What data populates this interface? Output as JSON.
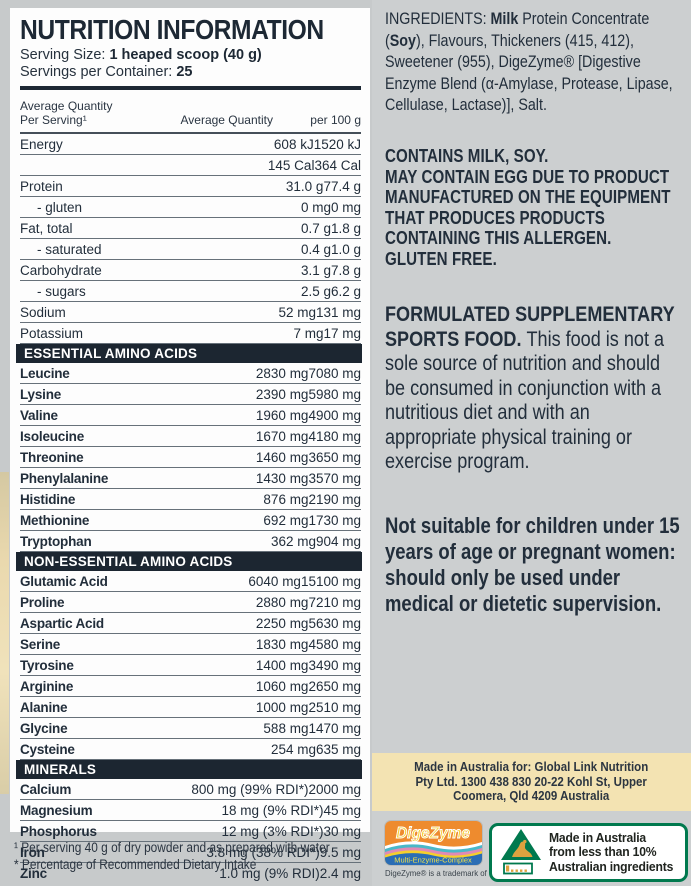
{
  "header": {
    "title": "NUTRITION INFORMATION",
    "serving_size_label": "Serving Size: ",
    "serving_size_value": "1 heaped scoop (40 g)",
    "servings_label": "Servings per Container: ",
    "servings_value": "25"
  },
  "table": {
    "columns": [
      "Average Quantity Per Serving¹",
      "Average Quantity",
      "per 100 g"
    ],
    "rows": [
      {
        "name": "Energy",
        "qty": "608 kJ",
        "per100": "1520 kJ",
        "style": ""
      },
      {
        "name": "",
        "qty": "145 Cal",
        "per100": "364 Cal",
        "style": ""
      },
      {
        "name": "Protein",
        "qty": "31.0 g",
        "per100": "77.4 g",
        "style": ""
      },
      {
        "name": "- gluten",
        "qty": "0 mg",
        "per100": "0 mg",
        "style": "sub"
      },
      {
        "name": "Fat, total",
        "qty": "0.7 g",
        "per100": "1.8 g",
        "style": ""
      },
      {
        "name": "- saturated",
        "qty": "0.4 g",
        "per100": "1.0 g",
        "style": "sub"
      },
      {
        "name": "Carbohydrate",
        "qty": "3.1 g",
        "per100": "7.8 g",
        "style": ""
      },
      {
        "name": "- sugars",
        "qty": "2.5 g",
        "per100": "6.2 g",
        "style": "sub"
      },
      {
        "name": "Sodium",
        "qty": "52 mg",
        "per100": "131 mg",
        "style": ""
      },
      {
        "name": "Potassium",
        "qty": "7 mg",
        "per100": "17 mg",
        "style": ""
      },
      {
        "section": "ESSENTIAL AMINO ACIDS"
      },
      {
        "name": "Leucine",
        "qty": "2830 mg",
        "per100": "7080 mg",
        "style": "b"
      },
      {
        "name": "Lysine",
        "qty": "2390 mg",
        "per100": "5980 mg",
        "style": "b"
      },
      {
        "name": "Valine",
        "qty": "1960 mg",
        "per100": "4900 mg",
        "style": "b"
      },
      {
        "name": "Isoleucine",
        "qty": "1670 mg",
        "per100": "4180 mg",
        "style": "b"
      },
      {
        "name": "Threonine",
        "qty": "1460 mg",
        "per100": "3650 mg",
        "style": "b"
      },
      {
        "name": "Phenylalanine",
        "qty": "1430 mg",
        "per100": "3570 mg",
        "style": "b"
      },
      {
        "name": "Histidine",
        "qty": "876 mg",
        "per100": "2190 mg",
        "style": "b"
      },
      {
        "name": "Methionine",
        "qty": "692 mg",
        "per100": "1730 mg",
        "style": "b"
      },
      {
        "name": "Tryptophan",
        "qty": "362 mg",
        "per100": "904 mg",
        "style": "b"
      },
      {
        "section": "NON-ESSENTIAL AMINO ACIDS"
      },
      {
        "name": "Glutamic Acid",
        "qty": "6040 mg",
        "per100": "15100 mg",
        "style": "b"
      },
      {
        "name": "Proline",
        "qty": "2880 mg",
        "per100": "7210 mg",
        "style": "b"
      },
      {
        "name": "Aspartic Acid",
        "qty": "2250 mg",
        "per100": "5630 mg",
        "style": "b"
      },
      {
        "name": "Serine",
        "qty": "1830 mg",
        "per100": "4580 mg",
        "style": "b"
      },
      {
        "name": "Tyrosine",
        "qty": "1400 mg",
        "per100": "3490 mg",
        "style": "b"
      },
      {
        "name": "Arginine",
        "qty": "1060 mg",
        "per100": "2650 mg",
        "style": "b"
      },
      {
        "name": "Alanine",
        "qty": "1000 mg",
        "per100": "2510 mg",
        "style": "b"
      },
      {
        "name": "Glycine",
        "qty": "588 mg",
        "per100": "1470 mg",
        "style": "b"
      },
      {
        "name": "Cysteine",
        "qty": "254 mg",
        "per100": "635 mg",
        "style": "b"
      },
      {
        "section": "MINERALS"
      },
      {
        "name": "Calcium",
        "qty": "800 mg (99% RDI*)",
        "per100": "2000 mg",
        "style": "b"
      },
      {
        "name": "Magnesium",
        "qty": "18 mg (9% RDI*)",
        "per100": "45 mg",
        "style": "b"
      },
      {
        "name": "Phosphorus",
        "qty": "12 mg (3% RDI*)",
        "per100": "30 mg",
        "style": "b"
      },
      {
        "name": "Iron",
        "qty": "3.8 mg (38% RDI*)",
        "per100": "9.5 mg",
        "style": "b"
      },
      {
        "name": "Zinc",
        "qty": "1.0 mg (9% RDI)",
        "per100": "2.4 mg",
        "style": "b"
      }
    ]
  },
  "footnotes": [
    "¹ Per serving 40 g of dry powder and as prepared with water",
    "* Percentage of Recommended Dietary Intake"
  ],
  "right_panel": {
    "ingredients_segments": [
      {
        "t": "INGREDIENTS: ",
        "b": false
      },
      {
        "t": "Milk",
        "b": true
      },
      {
        "t": " Protein Concentrate (",
        "b": false
      },
      {
        "t": "Soy",
        "b": true
      },
      {
        "t": "), Flavours, Thickeners (415, 412), Sweetener (955), DigeZyme® [Digestive Enzyme Blend (α-Amylase, Protease, Lipase, Cellulase, Lactase)], Salt.",
        "b": false
      }
    ],
    "allergen_lines": [
      "CONTAINS MILK, SOY.",
      "MAY CONTAIN EGG DUE TO PRODUCT MANUFACTURED ON THE EQUIPMENT THAT PRODUCES PRODUCTS CONTAINING THIS ALLERGEN.",
      "GLUTEN FREE."
    ],
    "formulated_segments": [
      {
        "t": "FORMULATED SUPPLEMENTARY SPORTS FOOD. ",
        "b": true
      },
      {
        "t": "This food is not a sole source of nutrition and should be consumed in conjunction with a nutritious diet and with an appropriate physical training or exercise program.",
        "b": false
      }
    ],
    "warning_text": "Not suitable for children under 15 years of age or pregnant women: should only be used under medical or dietetic supervision.",
    "made_in_lines": [
      "Made in Australia for: Global Link Nutrition",
      "Pty Ltd. 1300 438 830  20-22 Kohl St, Upper",
      "Coomera, Qld 4209 Australia"
    ],
    "digezyme": {
      "title": "DigeZyme",
      "subtitle": "Multi-Enzyme-Complex",
      "caption": "DigeZyme® is a trademark of Sabinsa."
    },
    "aus_logo_lines": [
      "Made in Australia",
      "from less than 10%",
      "Australian ingredients"
    ]
  },
  "colors": {
    "navy": "#1d2834",
    "bar": "#1c2631",
    "background_gray": "#c7cacb",
    "right_gray": "#cccfd0",
    "cream": "#f3e3b2",
    "green": "#00794e",
    "gold": "#dda23f",
    "orange": "#ee8b2e",
    "blue": "#2a6db5"
  }
}
